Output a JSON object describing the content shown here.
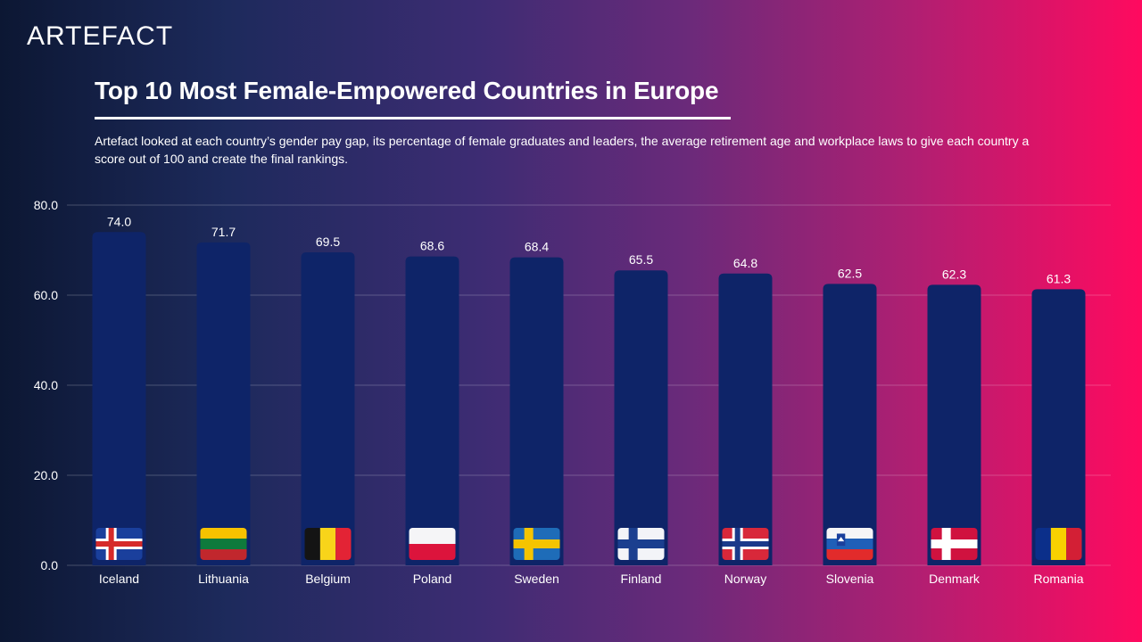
{
  "brand": {
    "logo_text": "ARTEFACT"
  },
  "header": {
    "title": "Top 10 Most Female-Empowered Countries in Europe",
    "subtitle": "Artefact looked at each country’s gender pay gap, its percentage of female graduates and leaders, the average retirement age and workplace laws to give each country a score out of 100 and create the final rankings."
  },
  "colors": {
    "bar": "#0e2468",
    "gridline": "rgba(255,255,255,0.22)"
  },
  "chart_data": {
    "type": "bar",
    "title": "Top 10 Most Female-Empowered Countries in Europe",
    "xlabel": "",
    "ylabel": "",
    "ylim": [
      0,
      80
    ],
    "yticks": [
      "0.0",
      "20.0",
      "40.0",
      "60.0",
      "80.0"
    ],
    "ytick_values": [
      0,
      20,
      40,
      60,
      80
    ],
    "grid": true,
    "categories": [
      "Iceland",
      "Lithuania",
      "Belgium",
      "Poland",
      "Sweden",
      "Finland",
      "Norway",
      "Slovenia",
      "Denmark",
      "Romania"
    ],
    "values": [
      74.0,
      71.7,
      69.5,
      68.6,
      68.4,
      65.5,
      64.8,
      62.5,
      62.3,
      61.3
    ],
    "value_labels": [
      "74.0",
      "71.7",
      "69.5",
      "68.6",
      "68.4",
      "65.5",
      "64.8",
      "62.5",
      "62.3",
      "61.3"
    ],
    "flags": [
      "iceland-flag-icon",
      "lithuania-flag-icon",
      "belgium-flag-icon",
      "poland-flag-icon",
      "sweden-flag-icon",
      "finland-flag-icon",
      "norway-flag-icon",
      "slovenia-flag-icon",
      "denmark-flag-icon",
      "romania-flag-icon"
    ]
  }
}
